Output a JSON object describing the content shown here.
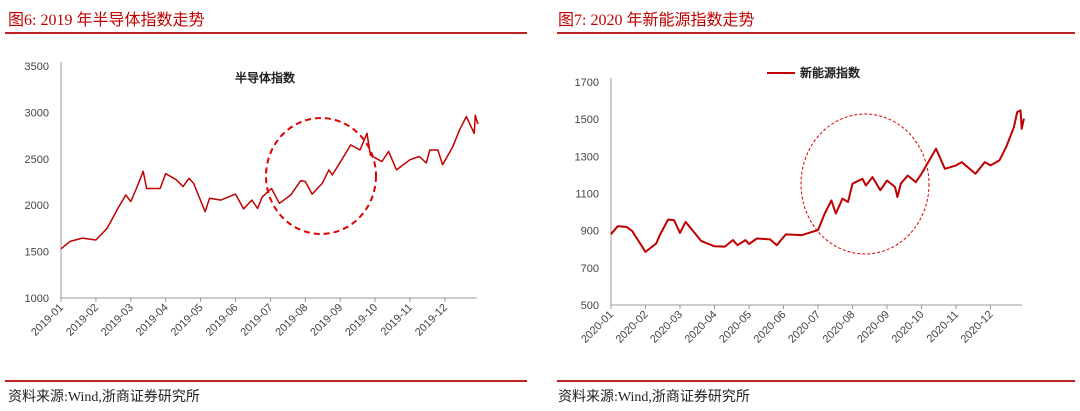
{
  "panels": [
    {
      "title": "图6:  2019 年半导体指数走势",
      "source": "资料来源:Wind,浙商证券研究所"
    },
    {
      "title": "图7:  2020 年新能源指数走势",
      "source": "资料来源:Wind,浙商证券研究所"
    }
  ],
  "colors": {
    "line": "#c00000",
    "rule": "#b22222",
    "circle": "#e00000"
  },
  "chart_data": [
    {
      "type": "line",
      "legend": "半导体指数",
      "legend_style": "text-only",
      "ylim": [
        1000,
        3500
      ],
      "yticks": [
        1000,
        1500,
        2000,
        2500,
        3000,
        3500
      ],
      "xticks": [
        "2019-01",
        "2019-02",
        "2019-03",
        "2019-04",
        "2019-05",
        "2019-06",
        "2019-07",
        "2019-08",
        "2019-09",
        "2019-10",
        "2019-11",
        "2019-12"
      ],
      "annotation": "dashed circle around 2019-07 to 2019-09 rise",
      "series": [
        {
          "name": "半导体指数",
          "points": [
            [
              "2019-01-01",
              1530
            ],
            [
              "2019-01-09",
              1610
            ],
            [
              "2019-01-20",
              1645
            ],
            [
              "2019-02-01",
              1625
            ],
            [
              "2019-02-10",
              1750
            ],
            [
              "2019-02-18",
              1950
            ],
            [
              "2019-02-25",
              2110
            ],
            [
              "2019-03-01",
              2040
            ],
            [
              "2019-03-06",
              2180
            ],
            [
              "2019-03-12",
              2365
            ],
            [
              "2019-03-15",
              2180
            ],
            [
              "2019-03-27",
              2180
            ],
            [
              "2019-04-01",
              2340
            ],
            [
              "2019-04-10",
              2275
            ],
            [
              "2019-04-16",
              2200
            ],
            [
              "2019-04-21",
              2290
            ],
            [
              "2019-04-25",
              2235
            ],
            [
              "2019-05-05",
              1930
            ],
            [
              "2019-05-09",
              2075
            ],
            [
              "2019-05-19",
              2055
            ],
            [
              "2019-06-01",
              2120
            ],
            [
              "2019-06-08",
              1960
            ],
            [
              "2019-06-15",
              2055
            ],
            [
              "2019-06-20",
              1965
            ],
            [
              "2019-06-24",
              2090
            ],
            [
              "2019-07-02",
              2180
            ],
            [
              "2019-07-09",
              2020
            ],
            [
              "2019-07-19",
              2110
            ],
            [
              "2019-07-28",
              2265
            ],
            [
              "2019-08-01",
              2255
            ],
            [
              "2019-08-07",
              2120
            ],
            [
              "2019-08-16",
              2235
            ],
            [
              "2019-08-22",
              2380
            ],
            [
              "2019-08-25",
              2325
            ],
            [
              "2019-09-04",
              2525
            ],
            [
              "2019-09-10",
              2650
            ],
            [
              "2019-09-18",
              2595
            ],
            [
              "2019-09-24",
              2775
            ],
            [
              "2019-09-27",
              2540
            ],
            [
              "2019-10-07",
              2470
            ],
            [
              "2019-10-13",
              2580
            ],
            [
              "2019-10-20",
              2380
            ],
            [
              "2019-11-01",
              2490
            ],
            [
              "2019-11-09",
              2525
            ],
            [
              "2019-11-15",
              2455
            ],
            [
              "2019-11-18",
              2595
            ],
            [
              "2019-11-25",
              2595
            ],
            [
              "2019-11-29",
              2435
            ],
            [
              "2019-12-08",
              2630
            ],
            [
              "2019-12-14",
              2810
            ],
            [
              "2019-12-20",
              2955
            ],
            [
              "2019-12-27",
              2775
            ],
            [
              "2019-12-28",
              2970
            ],
            [
              "2019-12-30",
              2885
            ],
            [
              "2019-12-31",
              2885
            ]
          ]
        }
      ]
    },
    {
      "type": "line",
      "legend": "新能源指数",
      "legend_style": "line-swatch",
      "ylim": [
        500,
        1700
      ],
      "yticks": [
        500,
        700,
        900,
        1100,
        1300,
        1500,
        1700
      ],
      "xticks": [
        "2020-01",
        "2020-02",
        "2020-03",
        "2020-04",
        "2020-05",
        "2020-06",
        "2020-07",
        "2020-08",
        "2020-09",
        "2020-10",
        "2020-11",
        "2020-12"
      ],
      "annotation": "dashed circle around 2020-07 to 2020-09 rise",
      "series": [
        {
          "name": "新能源指数",
          "points": [
            [
              "2020-01-01",
              881
            ],
            [
              "2020-01-07",
              924
            ],
            [
              "2020-01-15",
              920
            ],
            [
              "2020-01-20",
              899
            ],
            [
              "2020-02-01",
              786
            ],
            [
              "2020-02-10",
              831
            ],
            [
              "2020-02-13",
              876
            ],
            [
              "2020-02-20",
              960
            ],
            [
              "2020-02-25",
              956
            ],
            [
              "2020-03-01",
              888
            ],
            [
              "2020-03-06",
              947
            ],
            [
              "2020-03-20",
              845
            ],
            [
              "2020-04-01",
              816
            ],
            [
              "2020-04-10",
              814
            ],
            [
              "2020-04-17",
              849
            ],
            [
              "2020-04-21",
              822
            ],
            [
              "2020-04-28",
              849
            ],
            [
              "2020-05-01",
              828
            ],
            [
              "2020-05-08",
              858
            ],
            [
              "2020-05-20",
              853
            ],
            [
              "2020-05-26",
              822
            ],
            [
              "2020-06-03",
              880
            ],
            [
              "2020-06-17",
              876
            ],
            [
              "2020-07-01",
              903
            ],
            [
              "2020-07-07",
              992
            ],
            [
              "2020-07-13",
              1063
            ],
            [
              "2020-07-17",
              992
            ],
            [
              "2020-07-23",
              1072
            ],
            [
              "2020-07-28",
              1054
            ],
            [
              "2020-08-01",
              1153
            ],
            [
              "2020-08-10",
              1179
            ],
            [
              "2020-08-13",
              1143
            ],
            [
              "2020-08-19",
              1188
            ],
            [
              "2020-08-26",
              1117
            ],
            [
              "2020-09-01",
              1170
            ],
            [
              "2020-09-08",
              1135
            ],
            [
              "2020-09-10",
              1081
            ],
            [
              "2020-09-13",
              1153
            ],
            [
              "2020-09-19",
              1197
            ],
            [
              "2020-09-26",
              1161
            ],
            [
              "2020-10-01",
              1206
            ],
            [
              "2020-10-14",
              1341
            ],
            [
              "2020-10-22",
              1233
            ],
            [
              "2020-11-01",
              1251
            ],
            [
              "2020-11-06",
              1269
            ],
            [
              "2020-11-18",
              1206
            ],
            [
              "2020-11-26",
              1269
            ],
            [
              "2020-12-01",
              1251
            ],
            [
              "2020-12-09",
              1278
            ],
            [
              "2020-12-15",
              1349
            ],
            [
              "2020-12-22",
              1457
            ],
            [
              "2020-12-25",
              1538
            ],
            [
              "2020-12-28",
              1547
            ],
            [
              "2020-12-29",
              1448
            ],
            [
              "2020-12-31",
              1503
            ]
          ]
        }
      ]
    }
  ]
}
